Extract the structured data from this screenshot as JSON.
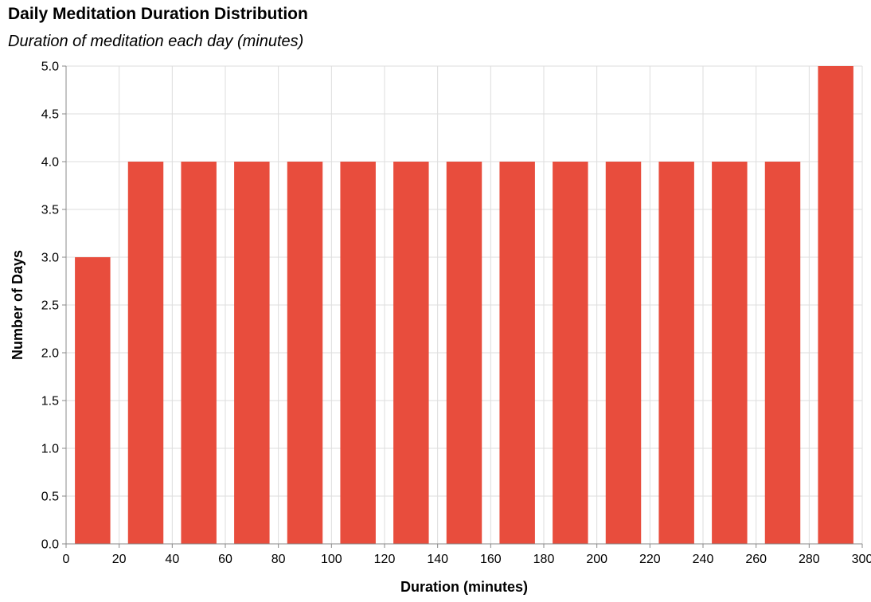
{
  "chart_data": {
    "type": "bar",
    "title": "Daily Meditation Duration Distribution",
    "subtitle": "Duration of meditation each day (minutes)",
    "xlabel": "Duration (minutes)",
    "ylabel": "Number of Days",
    "bins": [
      {
        "start": 0,
        "end": 20,
        "count": 3
      },
      {
        "start": 20,
        "end": 40,
        "count": 4
      },
      {
        "start": 40,
        "end": 60,
        "count": 4
      },
      {
        "start": 60,
        "end": 80,
        "count": 4
      },
      {
        "start": 80,
        "end": 100,
        "count": 4
      },
      {
        "start": 100,
        "end": 120,
        "count": 4
      },
      {
        "start": 120,
        "end": 140,
        "count": 4
      },
      {
        "start": 140,
        "end": 160,
        "count": 4
      },
      {
        "start": 160,
        "end": 180,
        "count": 4
      },
      {
        "start": 180,
        "end": 200,
        "count": 4
      },
      {
        "start": 200,
        "end": 220,
        "count": 4
      },
      {
        "start": 220,
        "end": 240,
        "count": 4
      },
      {
        "start": 240,
        "end": 260,
        "count": 4
      },
      {
        "start": 260,
        "end": 280,
        "count": 4
      },
      {
        "start": 280,
        "end": 300,
        "count": 5
      }
    ],
    "xlim": [
      0,
      300
    ],
    "ylim": [
      0,
      5
    ],
    "x_ticks": [
      0,
      20,
      40,
      60,
      80,
      100,
      120,
      140,
      160,
      180,
      200,
      220,
      240,
      260,
      280,
      300
    ],
    "y_ticks": [
      "0.0",
      "0.5",
      "1.0",
      "1.5",
      "2.0",
      "2.5",
      "3.0",
      "3.5",
      "4.0",
      "4.5",
      "5.0"
    ],
    "grid": true,
    "bar_color": "#e84d3d",
    "grid_color": "#dddddd",
    "axis_color": "#888888"
  }
}
